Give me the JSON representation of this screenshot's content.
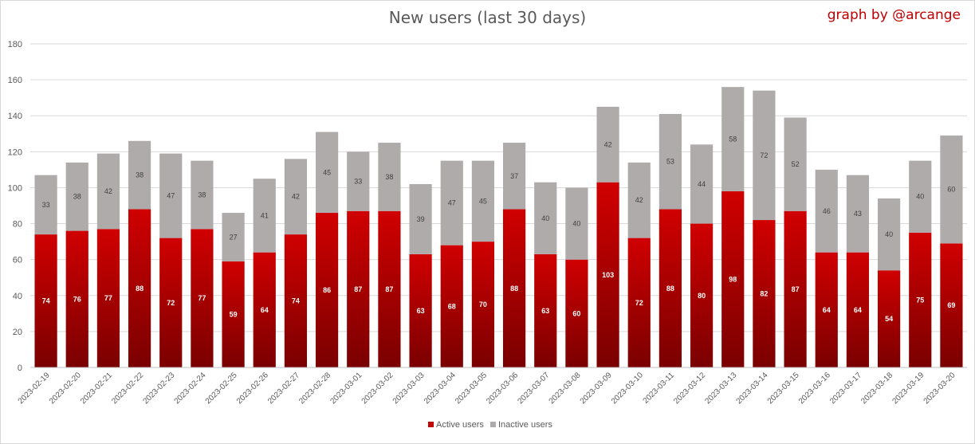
{
  "title": "New users (last 30 days)",
  "credit": "graph by @arcange",
  "chart_data": {
    "type": "bar",
    "stacked": true,
    "categories": [
      "2023-02-19",
      "2023-02-20",
      "2023-02-21",
      "2023-02-22",
      "2023-02-23",
      "2023-02-24",
      "2023-02-25",
      "2023-02-26",
      "2023-02-27",
      "2023-02-28",
      "2023-03-01",
      "2023-03-02",
      "2023-03-03",
      "2023-03-04",
      "2023-03-05",
      "2023-03-06",
      "2023-03-07",
      "2023-03-08",
      "2023-03-09",
      "2023-03-10",
      "2023-03-11",
      "2023-03-12",
      "2023-03-13",
      "2023-03-14",
      "2023-03-15",
      "2023-03-16",
      "2023-03-17",
      "2023-03-18",
      "2023-03-19",
      "2023-03-20"
    ],
    "series": [
      {
        "name": "Active users",
        "color": "#c00000",
        "values": [
          74,
          76,
          77,
          88,
          72,
          77,
          59,
          64,
          74,
          86,
          87,
          87,
          63,
          68,
          70,
          88,
          63,
          60,
          103,
          72,
          88,
          80,
          98,
          82,
          87,
          64,
          64,
          54,
          75,
          69
        ]
      },
      {
        "name": "Inactive users",
        "color": "#b0abab",
        "values": [
          33,
          38,
          42,
          38,
          47,
          38,
          27,
          41,
          42,
          45,
          33,
          38,
          39,
          47,
          45,
          37,
          40,
          40,
          42,
          42,
          53,
          44,
          58,
          72,
          52,
          46,
          43,
          40,
          40,
          60
        ]
      }
    ],
    "ylim": [
      0,
      180
    ],
    "yticks": [
      0,
      20,
      40,
      60,
      80,
      100,
      120,
      140,
      160,
      180
    ],
    "grid": true,
    "legend": "bottom"
  }
}
